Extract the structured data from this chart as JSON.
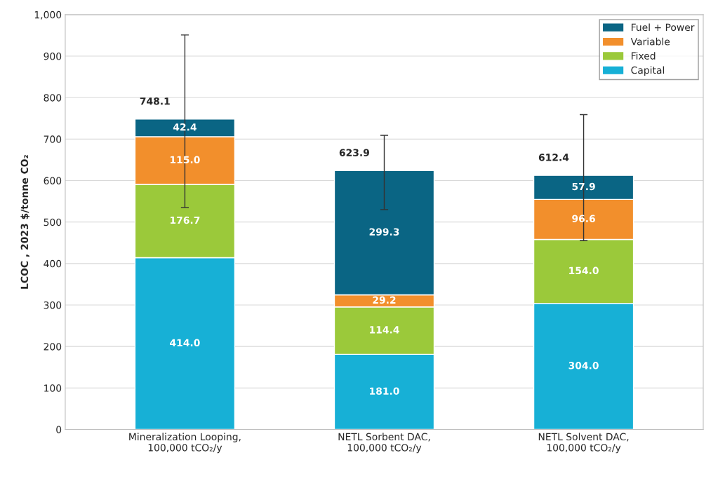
{
  "chart_data": {
    "type": "bar",
    "stacked": true,
    "ylabel": "LCOC , 2023 $/tonne CO₂",
    "categories": [
      "Mineralization Looping,\n100,000 tCO₂/y",
      "NETL Sorbent DAC,\n100,000 tCO₂/y",
      "NETL Solvent DAC,\n100,000 tCO₂/y"
    ],
    "series": [
      {
        "name": "Capital",
        "color": "#17b0d6",
        "values": [
          414.0,
          181.0,
          304.0
        ],
        "value_labels": [
          "414.0",
          "181.0",
          "304.0"
        ]
      },
      {
        "name": "Fixed",
        "color": "#9bc93a",
        "values": [
          176.7,
          114.4,
          154.0
        ],
        "value_labels": [
          "176.7",
          "114.4",
          "154.0"
        ]
      },
      {
        "name": "Variable",
        "color": "#f28f2c",
        "values": [
          115.0,
          29.2,
          96.6
        ],
        "value_labels": [
          "115.0",
          "29.2",
          "96.6"
        ]
      },
      {
        "name": "Fuel + Power",
        "color": "#0a6584",
        "values": [
          42.4,
          299.3,
          57.9
        ],
        "value_labels": [
          "42.4",
          "299.3",
          "57.9"
        ],
        "errors": [
          [
            535,
            951
          ],
          [
            530,
            709
          ],
          [
            455,
            759
          ]
        ]
      }
    ],
    "totals": [
      "748.1",
      "623.9",
      "612.4"
    ],
    "ylim": [
      0,
      1000
    ],
    "yticks": [
      0,
      100,
      200,
      300,
      400,
      500,
      600,
      700,
      800,
      900,
      {
        "value": 1000,
        "label": "1,000"
      }
    ],
    "grid": "y",
    "legend": "top right"
  }
}
